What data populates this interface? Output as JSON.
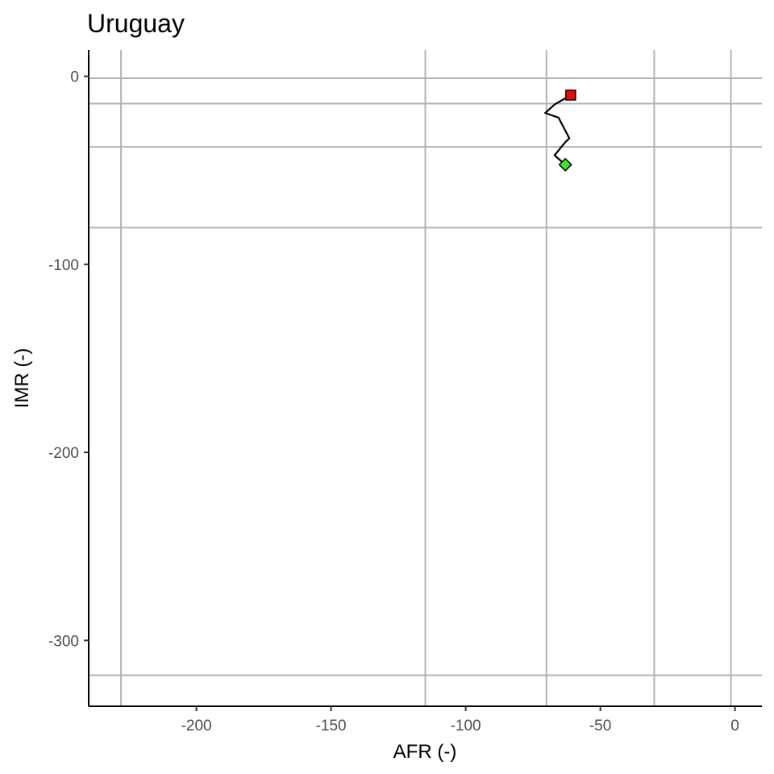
{
  "chart_data": {
    "type": "line",
    "title": "Uruguay",
    "xlabel": "AFR (-)",
    "ylabel": "IMR (-)",
    "xlim": [
      -240,
      10
    ],
    "ylim": [
      -335,
      14
    ],
    "x_ticks": [
      -200,
      -150,
      -100,
      -50,
      0
    ],
    "y_ticks": [
      0,
      -100,
      -200,
      -300
    ],
    "x_ref_lines": [
      -228,
      -115,
      -70,
      -30,
      -1.5
    ],
    "y_ref_lines": [
      -1,
      -14.5,
      -37.5,
      -80.5,
      -318.5
    ],
    "grid": false,
    "series": [
      {
        "x": [
          -63,
          -67,
          -63,
          -61.5,
          -65.5,
          -70.5,
          -67,
          -61
        ],
        "y": [
          -47,
          -42,
          -35,
          -33,
          -22,
          -19.5,
          -15,
          -10
        ]
      }
    ],
    "markers": [
      {
        "shape": "square",
        "color": "#ff0000",
        "x": -61,
        "y": -10
      },
      {
        "shape": "diamond",
        "color": "#33ee22",
        "x": -63,
        "y": -47
      }
    ],
    "colors": {
      "line": "#000000",
      "ref_line": "#b3b3b3",
      "axis": "#000000"
    }
  }
}
